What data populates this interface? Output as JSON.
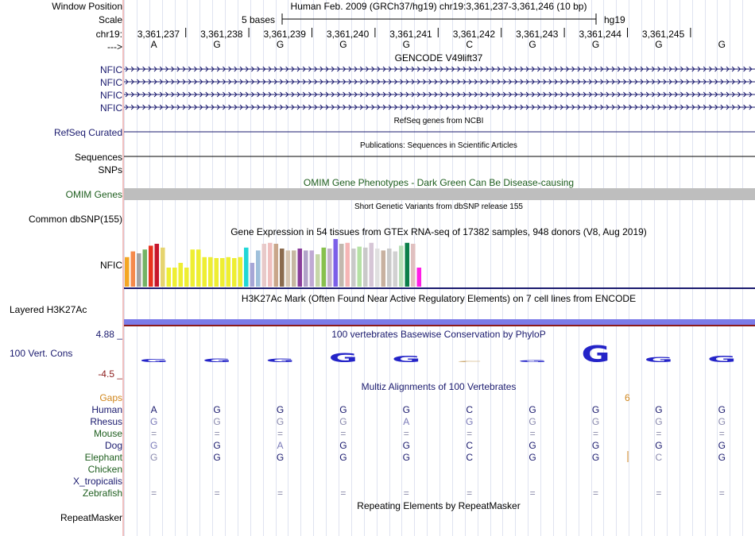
{
  "header": {
    "window_position_label": "Window Position",
    "scale_label": "Scale",
    "chrom_label": "chr19:",
    "strand_label": "--->",
    "assembly_text": "Human Feb. 2009 (GRCh37/hg19)   chr19:3,361,237-3,361,246 (10 bp)",
    "scale_text": "5 bases",
    "db_text": "hg19"
  },
  "positions": [
    "3,361,237",
    "3,361,238",
    "3,361,239",
    "3,361,240",
    "3,361,241",
    "3,361,242",
    "3,361,243",
    "3,361,244",
    "3,361,245"
  ],
  "reference_bases": [
    "A",
    "G",
    "G",
    "G",
    "G",
    "C",
    "G",
    "G",
    "G",
    "G"
  ],
  "tracks": {
    "gencode": {
      "title": "GENCODE V49lift37",
      "labels": [
        "NFIC",
        "NFIC",
        "NFIC",
        "NFIC"
      ]
    },
    "refseq": {
      "label": "RefSeq Curated",
      "title": "RefSeq genes from NCBI"
    },
    "publications": {
      "label": "Sequences",
      "title": "Publications: Sequences in Scientific Articles"
    },
    "snps": {
      "label": "SNPs"
    },
    "omim": {
      "label": "OMIM Genes",
      "title": "OMIM Gene Phenotypes - Dark Green Can Be Disease-causing"
    },
    "dbsnp": {
      "label": "Common dbSNP(155)",
      "title": "Short Genetic Variants from dbSNP release 155"
    },
    "gtex": {
      "label": "NFIC",
      "title": "Gene Expression in 54 tissues from GTEx RNA-seq of 17382 samples, 948 donors (V8, Aug 2019)"
    },
    "h3k27ac": {
      "label": "Layered H3K27Ac",
      "title": "H3K27Ac Mark (Often Found Near Active Regulatory Elements) on 7 cell lines from ENCODE"
    },
    "conservation": {
      "label": "100 Vert. Cons",
      "title": "100 vertebrates Basewise Conservation by PhyloP",
      "max": "4.88 _",
      "min": "-4.5 _"
    },
    "multiz": {
      "title": "Multiz Alignments of 100 Vertebrates",
      "gap_count": "6"
    },
    "repeatmasker": {
      "label": "RepeatMasker",
      "title": "Repeating Elements by RepeatMasker"
    }
  },
  "alignment_rows": [
    {
      "species": "Gaps",
      "bases": [
        "",
        "",
        "",
        "",
        "",
        "",
        "",
        "",
        "",
        ""
      ]
    },
    {
      "species": "Human",
      "bases": [
        "A",
        "G",
        "G",
        "G",
        "G",
        "C",
        "G",
        "G",
        "G",
        "G"
      ]
    },
    {
      "species": "Rhesus",
      "bases": [
        "G",
        "G",
        "G",
        "G",
        "A",
        "G",
        "G",
        "G",
        "G",
        "G"
      ]
    },
    {
      "species": "Mouse",
      "bases": [
        "=",
        "=",
        "=",
        "=",
        "=",
        "=",
        "=",
        "=",
        "=",
        "="
      ]
    },
    {
      "species": "Dog",
      "bases": [
        "G",
        "G",
        "A",
        "G",
        "G",
        "C",
        "G",
        "G",
        "G",
        "G"
      ]
    },
    {
      "species": "Elephant",
      "bases": [
        "G",
        "G",
        "G",
        "G",
        "G",
        "C",
        "G",
        "G",
        "C",
        "G"
      ]
    },
    {
      "species": "Chicken",
      "bases": [
        "",
        "",
        "",
        "",
        "",
        "",
        "",
        "",
        "",
        ""
      ]
    },
    {
      "species": "X_tropicalis",
      "bases": [
        "",
        "",
        "",
        "",
        "",
        "",
        "",
        "",
        "",
        ""
      ]
    },
    {
      "species": "Zebrafish",
      "bases": [
        "=",
        "=",
        "=",
        "=",
        "=",
        "=",
        "=",
        "=",
        "=",
        "="
      ]
    }
  ],
  "colors": {
    "navy": "#1a1a6e",
    "green": "#1e5e1e",
    "omim_bar": "#bebebe",
    "h3k27ac_bar": "#7b7be8",
    "conservation": "#2424c8",
    "gaps": "#d0861c"
  },
  "gtex_colors": [
    "#f5a623",
    "#f58a4c",
    "#a3a3a3",
    "#74b365",
    "#e8321e",
    "#c7152b",
    "#e6d46f",
    "#eeee33",
    "#eeee33",
    "#eeee33",
    "#eeee33",
    "#eeee33",
    "#eeee33",
    "#eeee33",
    "#eeee33",
    "#eeee33",
    "#eeee33",
    "#eeee33",
    "#eeee33",
    "#eeee33",
    "#21d7d7",
    "#a6a6d6",
    "#9fc0db",
    "#e8c9c9",
    "#f0c0c0",
    "#c9a68a",
    "#8b6b4e",
    "#d6c4b0",
    "#c6b7a2",
    "#8a3e9b",
    "#b2a2c9",
    "#c0a9d4",
    "#c6d6a8",
    "#88c14e",
    "#c3b3c9",
    "#7b5fe8",
    "#c2b8ae",
    "#f5b5b5",
    "#c9c9c9",
    "#b5e1a5",
    "#c9c9c9",
    "#d6c6d6",
    "#e0e0e0",
    "#c8b1a0",
    "#c9c9c9",
    "#d1d1d1",
    "#b8e0b8",
    "#0b7f4a",
    "#e0c0c0",
    "#ff1ee6"
  ],
  "gtex_values": [
    0.62,
    0.74,
    0.7,
    0.78,
    0.86,
    0.9,
    0.82,
    0.4,
    0.4,
    0.5,
    0.4,
    0.78,
    0.78,
    0.62,
    0.62,
    0.6,
    0.6,
    0.62,
    0.6,
    0.62,
    0.82,
    0.5,
    0.76,
    0.9,
    0.92,
    0.9,
    0.8,
    0.76,
    0.76,
    0.8,
    0.76,
    0.76,
    0.68,
    0.82,
    0.8,
    1.0,
    0.9,
    0.92,
    0.8,
    0.84,
    0.82,
    0.92,
    0.8,
    0.76,
    0.8,
    0.74,
    0.86,
    0.92,
    0.9,
    0.4
  ],
  "conservation_letters": [
    "G",
    "G",
    "G",
    "G",
    "G",
    "C",
    "G",
    "G",
    "G",
    "G"
  ],
  "conservation_heights": [
    0.1,
    0.12,
    0.11,
    0.3,
    0.2,
    0.02,
    0.06,
    0.55,
    0.16,
    0.2
  ],
  "conservation_colors": [
    "#2424c8",
    "#2424c8",
    "#2424c8",
    "#2424c8",
    "#2424c8",
    "#c8a060",
    "#2424c8",
    "#2424c8",
    "#2424c8",
    "#2424c8"
  ]
}
